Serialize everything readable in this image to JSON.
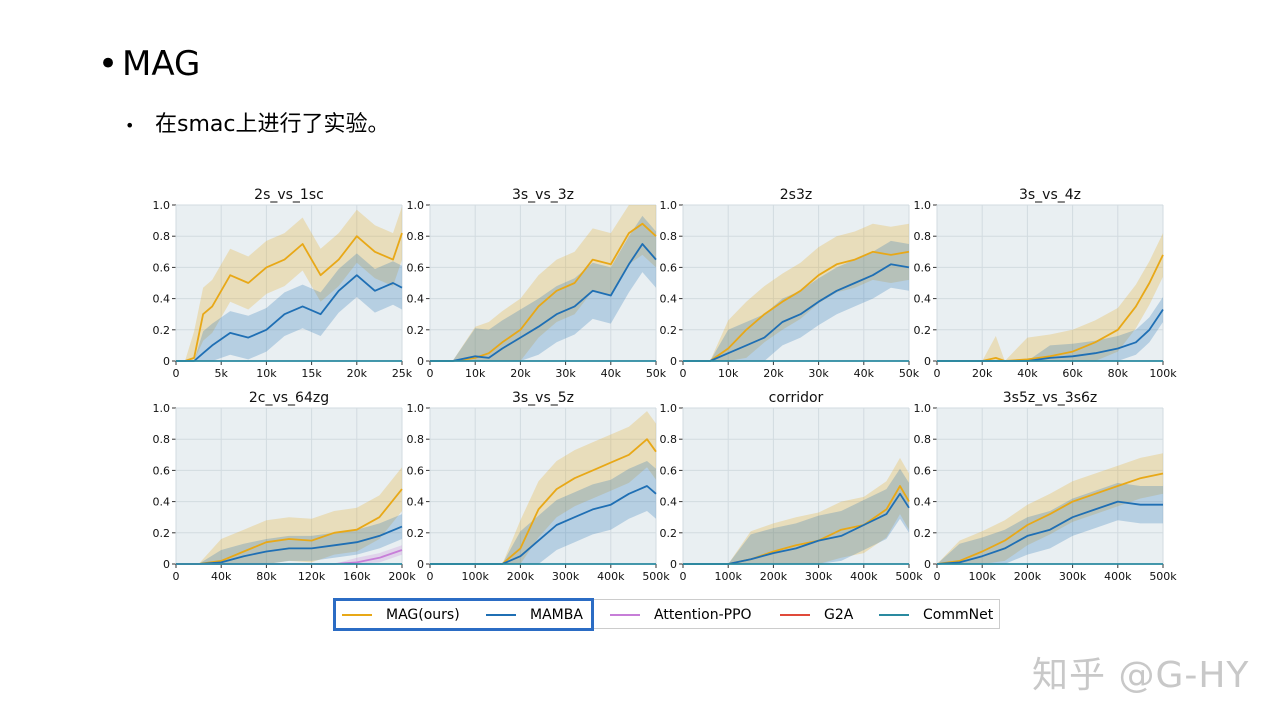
{
  "slide": {
    "bullet_symbol": "•",
    "title": "MAG",
    "sub_bullet": "•",
    "subtitle": "在smac上进行了实验。"
  },
  "watermark": "知乎 @G-HY",
  "colors": {
    "MAG(ours)": "#e8a817",
    "MAMBA": "#1f6fb4",
    "Attention-PPO": "#c77ed8",
    "G2A": "#e04a3a",
    "CommNet": "#2a8aa0",
    "panel_bg": "#e9eff2",
    "grid": "#d2dbe0"
  },
  "legend": {
    "items": [
      "MAG(ours)",
      "MAMBA",
      "Attention-PPO",
      "G2A",
      "CommNet"
    ]
  },
  "chart_data": [
    {
      "type": "line",
      "title": "2s_vs_1sc",
      "xlim": [
        0,
        25000
      ],
      "ylim": [
        0,
        1
      ],
      "xticks": [
        0,
        5000,
        10000,
        15000,
        20000,
        25000
      ],
      "xtick_labels": [
        "0",
        "5k",
        "10k",
        "15k",
        "20k",
        "25k"
      ],
      "yticks": [
        0,
        0.2,
        0.4,
        0.6,
        0.8,
        1.0
      ],
      "ytick_labels": [
        "0",
        "0.2",
        "0.4",
        "0.6",
        "0.8",
        "1.0"
      ],
      "x": [
        0,
        1000,
        2000,
        3000,
        4000,
        6000,
        8000,
        10000,
        12000,
        14000,
        16000,
        18000,
        20000,
        22000,
        24000,
        25000
      ],
      "series": [
        {
          "name": "MAG(ours)",
          "values": [
            0,
            0,
            0.02,
            0.3,
            0.35,
            0.55,
            0.5,
            0.6,
            0.65,
            0.75,
            0.55,
            0.65,
            0.8,
            0.7,
            0.65,
            0.82
          ],
          "band": 0.17
        },
        {
          "name": "MAMBA",
          "values": [
            0,
            0,
            0,
            0.05,
            0.1,
            0.18,
            0.15,
            0.2,
            0.3,
            0.35,
            0.3,
            0.45,
            0.55,
            0.45,
            0.5,
            0.47
          ],
          "band": 0.14
        },
        {
          "name": "CommNet",
          "values": [
            0,
            0,
            0,
            0,
            0,
            0,
            0,
            0,
            0,
            0,
            0,
            0,
            0,
            0,
            0,
            0
          ],
          "band": 0
        }
      ]
    },
    {
      "type": "line",
      "title": "3s_vs_3z",
      "xlim": [
        0,
        50000
      ],
      "ylim": [
        0,
        1
      ],
      "xticks": [
        0,
        10000,
        20000,
        30000,
        40000,
        50000
      ],
      "xtick_labels": [
        "0",
        "10k",
        "20k",
        "30k",
        "40k",
        "50k"
      ],
      "yticks": [
        0,
        0.2,
        0.4,
        0.6,
        0.8,
        1.0
      ],
      "ytick_labels": [
        "0",
        "0.2",
        "0.4",
        "0.6",
        "0.8",
        "1.0"
      ],
      "x": [
        0,
        5000,
        10000,
        13000,
        16000,
        20000,
        24000,
        28000,
        32000,
        36000,
        40000,
        44000,
        47000,
        50000
      ],
      "series": [
        {
          "name": "MAG(ours)",
          "values": [
            0,
            0,
            0.02,
            0.05,
            0.12,
            0.2,
            0.35,
            0.45,
            0.5,
            0.65,
            0.62,
            0.82,
            0.88,
            0.8
          ],
          "band": 0.2
        },
        {
          "name": "MAMBA",
          "values": [
            0,
            0,
            0.03,
            0.02,
            0.08,
            0.15,
            0.22,
            0.3,
            0.35,
            0.45,
            0.42,
            0.62,
            0.75,
            0.65
          ],
          "band": 0.18
        },
        {
          "name": "CommNet",
          "values": [
            0,
            0,
            0,
            0,
            0,
            0,
            0,
            0,
            0,
            0,
            0,
            0,
            0,
            0
          ],
          "band": 0
        }
      ]
    },
    {
      "type": "line",
      "title": "2s3z",
      "xlim": [
        0,
        50000
      ],
      "ylim": [
        0,
        1
      ],
      "xticks": [
        0,
        10000,
        20000,
        30000,
        40000,
        50000
      ],
      "xtick_labels": [
        "0",
        "10k",
        "20k",
        "30k",
        "40k",
        "50k"
      ],
      "yticks": [
        0,
        0.2,
        0.4,
        0.6,
        0.8,
        1.0
      ],
      "ytick_labels": [
        "0",
        "0.2",
        "0.4",
        "0.6",
        "0.8",
        "1.0"
      ],
      "x": [
        0,
        6000,
        10000,
        14000,
        18000,
        22000,
        26000,
        30000,
        34000,
        38000,
        42000,
        46000,
        50000
      ],
      "series": [
        {
          "name": "MAG(ours)",
          "values": [
            0,
            0,
            0.08,
            0.2,
            0.3,
            0.38,
            0.45,
            0.55,
            0.62,
            0.65,
            0.7,
            0.68,
            0.7
          ],
          "band": 0.18
        },
        {
          "name": "MAMBA",
          "values": [
            0,
            0,
            0.05,
            0.1,
            0.15,
            0.25,
            0.3,
            0.38,
            0.45,
            0.5,
            0.55,
            0.62,
            0.6
          ],
          "band": 0.15
        },
        {
          "name": "CommNet",
          "values": [
            0,
            0,
            0,
            0,
            0,
            0,
            0,
            0,
            0,
            0,
            0,
            0,
            0
          ],
          "band": 0
        }
      ]
    },
    {
      "type": "line",
      "title": "3s_vs_4z",
      "xlim": [
        0,
        100000
      ],
      "ylim": [
        0,
        1
      ],
      "xticks": [
        0,
        20000,
        40000,
        60000,
        80000,
        100000
      ],
      "xtick_labels": [
        "0",
        "20k",
        "40k",
        "60k",
        "80k",
        "100k"
      ],
      "yticks": [
        0,
        0.2,
        0.4,
        0.6,
        0.8,
        1.0
      ],
      "ytick_labels": [
        "0",
        "0.2",
        "0.4",
        "0.6",
        "0.8",
        "1.0"
      ],
      "x": [
        0,
        20000,
        26000,
        30000,
        40000,
        50000,
        60000,
        70000,
        80000,
        88000,
        94000,
        100000
      ],
      "series": [
        {
          "name": "MAG(ours)",
          "values": [
            0,
            0,
            0.02,
            0,
            0.01,
            0.03,
            0.06,
            0.12,
            0.2,
            0.35,
            0.5,
            0.68
          ],
          "band": 0.14
        },
        {
          "name": "MAMBA",
          "values": [
            0,
            0,
            0,
            0,
            0,
            0.02,
            0.03,
            0.05,
            0.08,
            0.12,
            0.2,
            0.33
          ],
          "band": 0.08
        },
        {
          "name": "CommNet",
          "values": [
            0,
            0,
            0,
            0,
            0,
            0,
            0,
            0,
            0,
            0,
            0,
            0
          ],
          "band": 0
        }
      ]
    },
    {
      "type": "line",
      "title": "2c_vs_64zg",
      "xlim": [
        0,
        200000
      ],
      "ylim": [
        0,
        1
      ],
      "xticks": [
        0,
        40000,
        80000,
        120000,
        160000,
        200000
      ],
      "xtick_labels": [
        "0",
        "40k",
        "80k",
        "120k",
        "160k",
        "200k"
      ],
      "yticks": [
        0,
        0.2,
        0.4,
        0.6,
        0.8,
        1.0
      ],
      "ytick_labels": [
        "0",
        "0.2",
        "0.4",
        "0.6",
        "0.8",
        "1.0"
      ],
      "x": [
        0,
        20000,
        40000,
        60000,
        80000,
        100000,
        120000,
        140000,
        160000,
        180000,
        200000
      ],
      "series": [
        {
          "name": "MAG(ours)",
          "values": [
            0,
            0,
            0.02,
            0.08,
            0.14,
            0.16,
            0.15,
            0.2,
            0.22,
            0.3,
            0.48
          ],
          "band": 0.14
        },
        {
          "name": "MAMBA",
          "values": [
            0,
            0,
            0.01,
            0.05,
            0.08,
            0.1,
            0.1,
            0.12,
            0.14,
            0.18,
            0.24
          ],
          "band": 0.08
        },
        {
          "name": "Attention-PPO",
          "values": [
            0,
            0,
            0,
            0,
            0,
            0,
            0,
            0,
            0.01,
            0.04,
            0.09
          ],
          "band": 0.03
        },
        {
          "name": "CommNet",
          "values": [
            0,
            0,
            0,
            0,
            0,
            0,
            0,
            0,
            0,
            0,
            0
          ],
          "band": 0
        }
      ]
    },
    {
      "type": "line",
      "title": "3s_vs_5z",
      "xlim": [
        0,
        500000
      ],
      "ylim": [
        0,
        1
      ],
      "xticks": [
        0,
        100000,
        200000,
        300000,
        400000,
        500000
      ],
      "xtick_labels": [
        "0",
        "100k",
        "200k",
        "300k",
        "400k",
        "500k"
      ],
      "yticks": [
        0,
        0.2,
        0.4,
        0.6,
        0.8,
        1.0
      ],
      "ytick_labels": [
        "0",
        "0.2",
        "0.4",
        "0.6",
        "0.8",
        "1.0"
      ],
      "x": [
        0,
        100000,
        160000,
        200000,
        240000,
        280000,
        320000,
        360000,
        400000,
        440000,
        480000,
        500000
      ],
      "series": [
        {
          "name": "MAG(ours)",
          "values": [
            0,
            0,
            0,
            0.1,
            0.35,
            0.48,
            0.55,
            0.6,
            0.65,
            0.7,
            0.8,
            0.72
          ],
          "band": 0.18
        },
        {
          "name": "MAMBA",
          "values": [
            0,
            0,
            0,
            0.05,
            0.15,
            0.25,
            0.3,
            0.35,
            0.38,
            0.45,
            0.5,
            0.45
          ],
          "band": 0.16
        },
        {
          "name": "CommNet",
          "values": [
            0,
            0,
            0,
            0,
            0,
            0,
            0,
            0,
            0,
            0,
            0,
            0
          ],
          "band": 0
        }
      ]
    },
    {
      "type": "line",
      "title": "corridor",
      "xlim": [
        0,
        500000
      ],
      "ylim": [
        0,
        1
      ],
      "xticks": [
        0,
        100000,
        200000,
        300000,
        400000,
        500000
      ],
      "xtick_labels": [
        "0",
        "100k",
        "200k",
        "300k",
        "400k",
        "500k"
      ],
      "yticks": [
        0,
        0.2,
        0.4,
        0.6,
        0.8,
        1.0
      ],
      "ytick_labels": [
        "0",
        "0.2",
        "0.4",
        "0.6",
        "0.8",
        "1.0"
      ],
      "x": [
        0,
        100000,
        150000,
        200000,
        250000,
        300000,
        350000,
        400000,
        450000,
        480000,
        500000
      ],
      "series": [
        {
          "name": "MAG(ours)",
          "values": [
            0,
            0,
            0.03,
            0.08,
            0.12,
            0.15,
            0.22,
            0.25,
            0.35,
            0.5,
            0.4
          ],
          "band": 0.18
        },
        {
          "name": "MAMBA",
          "values": [
            0,
            0,
            0.03,
            0.07,
            0.1,
            0.15,
            0.18,
            0.25,
            0.32,
            0.45,
            0.36
          ],
          "band": 0.16
        },
        {
          "name": "CommNet",
          "values": [
            0,
            0,
            0,
            0,
            0,
            0,
            0,
            0,
            0,
            0,
            0
          ],
          "band": 0
        }
      ]
    },
    {
      "type": "line",
      "title": "3s5z_vs_3s6z",
      "xlim": [
        0,
        500000
      ],
      "ylim": [
        0,
        1
      ],
      "xticks": [
        0,
        100000,
        200000,
        300000,
        400000,
        500000
      ],
      "xtick_labels": [
        "0",
        "100k",
        "200k",
        "300k",
        "400k",
        "500k"
      ],
      "yticks": [
        0,
        0.2,
        0.4,
        0.6,
        0.8,
        1.0
      ],
      "ytick_labels": [
        "0",
        "0.2",
        "0.4",
        "0.6",
        "0.8",
        "1.0"
      ],
      "x": [
        0,
        50000,
        100000,
        150000,
        200000,
        250000,
        300000,
        350000,
        400000,
        450000,
        500000
      ],
      "series": [
        {
          "name": "MAG(ours)",
          "values": [
            0,
            0.02,
            0.08,
            0.15,
            0.25,
            0.32,
            0.4,
            0.45,
            0.5,
            0.55,
            0.58
          ],
          "band": 0.13
        },
        {
          "name": "MAMBA",
          "values": [
            0,
            0.01,
            0.05,
            0.1,
            0.18,
            0.22,
            0.3,
            0.35,
            0.4,
            0.38,
            0.38
          ],
          "band": 0.12
        },
        {
          "name": "CommNet",
          "values": [
            0,
            0,
            0,
            0,
            0,
            0,
            0,
            0,
            0,
            0,
            0
          ],
          "band": 0
        }
      ]
    }
  ]
}
